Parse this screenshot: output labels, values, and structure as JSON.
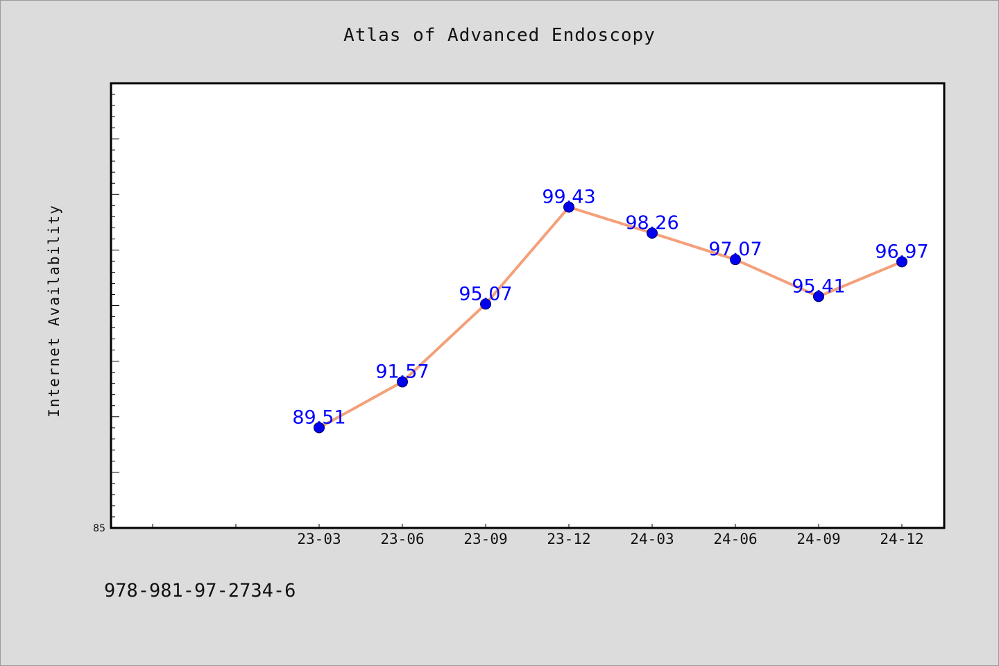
{
  "chart_data": {
    "type": "line",
    "title": "Atlas of Advanced Endoscopy",
    "ylabel": "Internet Availability",
    "xlabel": "",
    "categories": [
      "23-03",
      "23-06",
      "23-09",
      "23-12",
      "24-03",
      "24-06",
      "24-09",
      "24-12"
    ],
    "series": [
      {
        "values": [
          89.51,
          91.57,
          95.07,
          99.43,
          98.26,
          97.07,
          95.41,
          96.97
        ],
        "labels": [
          "89.51",
          "91.57",
          "95.07",
          "99.43",
          "98.26",
          "97.07",
          "95.41",
          "96.97"
        ]
      }
    ],
    "ylim": [
      85,
      105
    ],
    "y_tick_labels": [
      "85"
    ],
    "grid": false,
    "line_color": "#f4a07a",
    "marker_color": "#0000ee",
    "label_color": "#0000ff"
  },
  "footer": {
    "isbn": "978-981-97-2734-6"
  }
}
